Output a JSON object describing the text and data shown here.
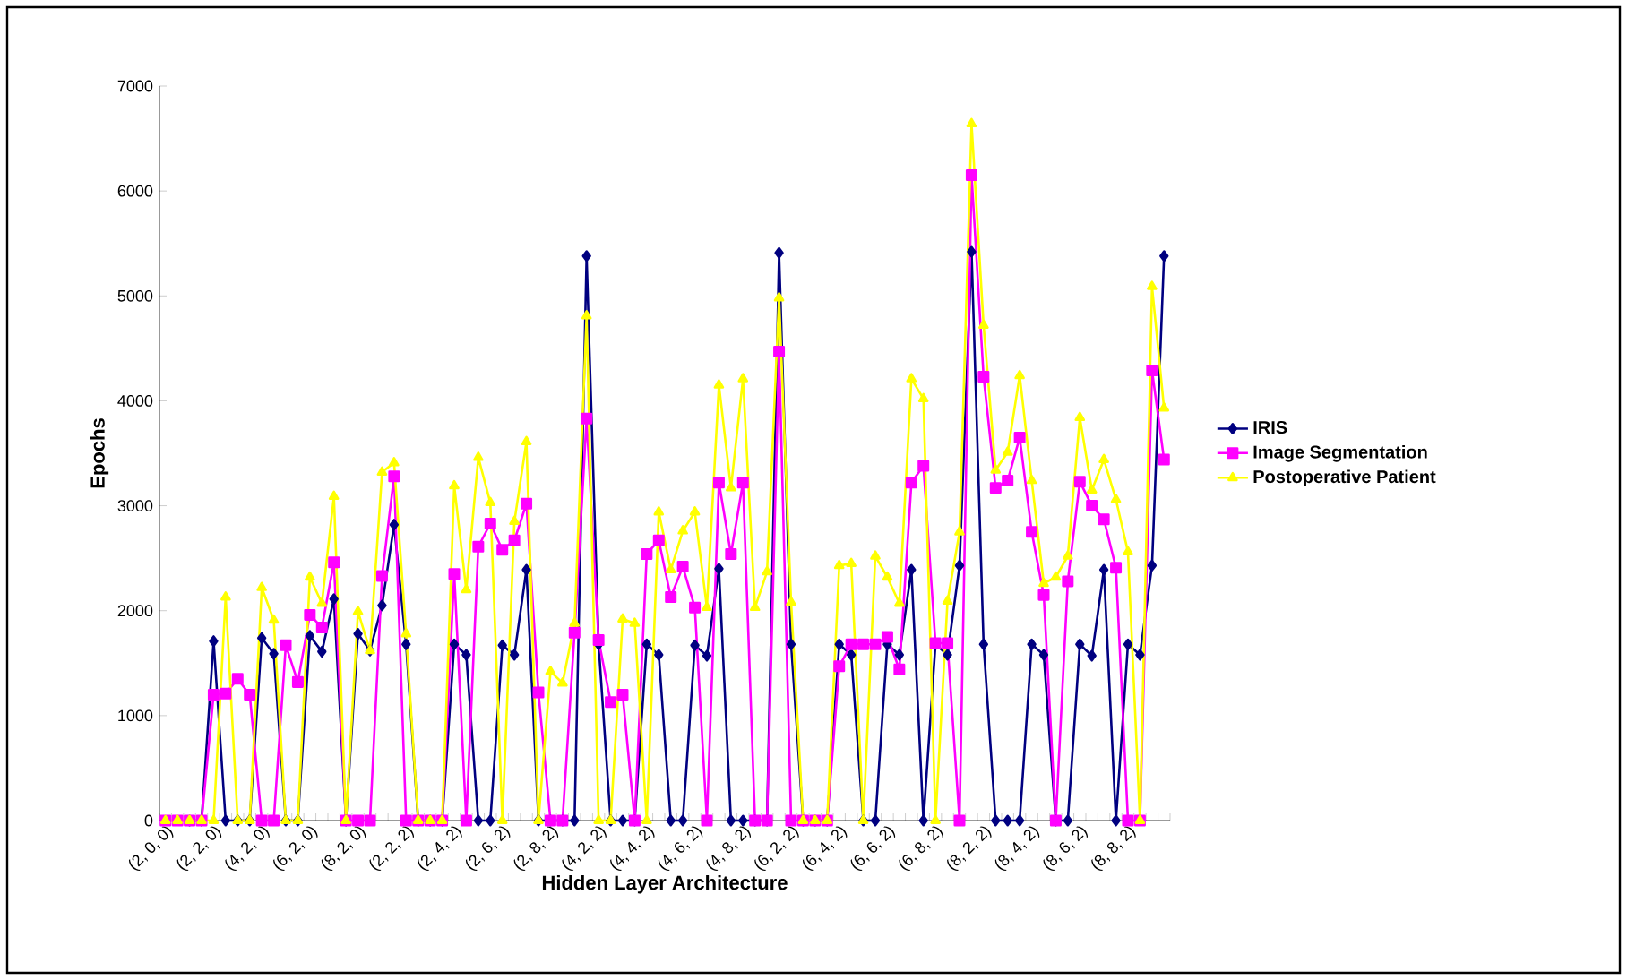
{
  "chart_data": {
    "type": "line",
    "xlabel": "Hidden Layer Architecture",
    "ylabel": "Epochs",
    "categories": [
      "(2, 0, 0)",
      null,
      null,
      null,
      "(2, 2, 0)",
      null,
      null,
      null,
      "(4, 2, 0)",
      null,
      null,
      null,
      "(6, 2, 0)",
      null,
      null,
      null,
      "(8, 2, 0)",
      null,
      null,
      null,
      "(2, 2, 2)",
      null,
      null,
      null,
      "(2, 4, 2)",
      null,
      null,
      null,
      "(2, 6, 2)",
      null,
      null,
      null,
      "(2, 8, 2)",
      null,
      null,
      null,
      "(4, 2, 2)",
      null,
      null,
      null,
      "(4, 4, 2)",
      null,
      null,
      null,
      "(4, 6, 2)",
      null,
      null,
      null,
      "(4, 8, 2)",
      null,
      null,
      null,
      "(6, 2, 2)",
      null,
      null,
      null,
      "(6, 4, 2)",
      null,
      null,
      null,
      "(6, 6, 2)",
      null,
      null,
      null,
      "(6, 8, 2)",
      null,
      null,
      null,
      "(8, 2, 2)",
      null,
      null,
      null,
      "(8, 4, 2)",
      null,
      null,
      null,
      "(8, 6, 2)",
      null,
      null,
      null,
      "(8, 8, 2)",
      null,
      null,
      null
    ],
    "series": [
      {
        "name": "IRIS",
        "color": "#000080",
        "marker": "diamond",
        "values": [
          null,
          null,
          0,
          0,
          1710,
          0,
          0,
          0,
          1740,
          1590,
          0,
          0,
          1760,
          1610,
          2110,
          0,
          1780,
          1620,
          2050,
          2820,
          1680,
          0,
          0,
          0,
          1680,
          1580,
          0,
          0,
          1670,
          1580,
          2390,
          0,
          0,
          0,
          0,
          5380,
          1680,
          0,
          0,
          0,
          1680,
          1580,
          0,
          0,
          1670,
          1570,
          2400,
          0,
          0,
          0,
          0,
          5410,
          1680,
          0,
          0,
          0,
          1680,
          1580,
          0,
          0,
          1680,
          1580,
          2390,
          0,
          1680,
          1580,
          2430,
          5420,
          1680,
          0,
          0,
          0,
          1680,
          1580,
          0,
          0,
          1680,
          1570,
          2390,
          0,
          1680,
          1580,
          2430,
          5380
        ]
      },
      {
        "name": "Image Segmentation",
        "color": "#ff00ff",
        "marker": "square",
        "values": [
          0,
          0,
          0,
          0,
          1200,
          1210,
          1350,
          1200,
          0,
          0,
          1670,
          1320,
          1960,
          1840,
          2460,
          0,
          0,
          0,
          2330,
          3280,
          0,
          0,
          0,
          0,
          2350,
          0,
          2610,
          2830,
          2580,
          2670,
          3020,
          1220,
          0,
          0,
          1790,
          3830,
          1720,
          1130,
          1200,
          0,
          2540,
          2670,
          2130,
          2420,
          2030,
          0,
          3220,
          2540,
          3220,
          0,
          0,
          4470,
          0,
          0,
          0,
          0,
          1470,
          1680,
          1680,
          1680,
          1750,
          1440,
          3220,
          3380,
          1690,
          1690,
          0,
          6150,
          4230,
          3170,
          3240,
          3650,
          2750,
          2150,
          0,
          2280,
          3230,
          3000,
          2870,
          2410,
          0,
          0,
          4290,
          3440
        ]
      },
      {
        "name": "Postoperative Patient",
        "color": "#ffff00",
        "marker": "triangle",
        "values": [
          0,
          0,
          0,
          0,
          0,
          2130,
          0,
          0,
          2220,
          1910,
          0,
          0,
          2320,
          2070,
          3090,
          0,
          1990,
          1620,
          3320,
          3410,
          1780,
          0,
          0,
          0,
          3190,
          2200,
          3460,
          3030,
          0,
          2850,
          3610,
          0,
          1420,
          1310,
          1880,
          4810,
          0,
          0,
          1920,
          1880,
          0,
          2940,
          2390,
          2760,
          2940,
          2030,
          4150,
          3170,
          4210,
          2030,
          2370,
          4980,
          2080,
          0,
          0,
          0,
          2430,
          2450,
          0,
          2520,
          2320,
          2070,
          4210,
          4020,
          0,
          2090,
          2750,
          6640,
          4720,
          3340,
          3510,
          4240,
          3240,
          2260,
          2320,
          2520,
          3840,
          3150,
          3440,
          3060,
          2560,
          0,
          5090,
          3930
        ]
      }
    ],
    "ylim": [
      0,
      7000
    ],
    "yticks": [
      0,
      1000,
      2000,
      3000,
      4000,
      5000,
      6000,
      7000
    ],
    "legend": "right"
  }
}
